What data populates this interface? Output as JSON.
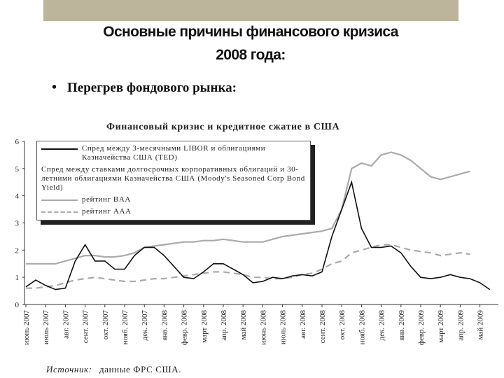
{
  "slide": {
    "title_lines": [
      "Основные причины финансового кризиса",
      "2008 года:"
    ],
    "bullet": "Перегрев фондового рынка:"
  },
  "chart_data": {
    "type": "line",
    "title": "Финансовый кризис и кредитное сжатие в США",
    "categories": [
      "июнь 2007",
      null,
      "июль 2007",
      null,
      "авг. 2007",
      null,
      "сент. 2007",
      null,
      "окт. 2007",
      null,
      "нояб. 2007",
      null,
      "дек. 2007",
      null,
      "янв. 2008",
      null,
      "февр. 2008",
      null,
      "март 2008",
      null,
      "апр. 2008",
      null,
      "май 2008",
      null,
      "июнь 2008",
      null,
      "июль 2008",
      null,
      "авг. 2008",
      null,
      "сент. 2008",
      null,
      "окт. 2008",
      null,
      "нояб. 2008",
      null,
      "дек. 2008",
      null,
      "янв. 2009",
      null,
      "февр. 2009",
      null,
      "март 2009",
      null,
      "апр. 2009",
      null,
      "май 2009",
      null
    ],
    "series": [
      {
        "name": "Спред между 3-месячными LIBOR и облигациями Казначейства США (TED)",
        "color": "#111111",
        "dash": false,
        "values": [
          0.65,
          0.9,
          0.7,
          0.55,
          0.6,
          1.6,
          2.2,
          1.6,
          1.6,
          1.3,
          1.3,
          1.8,
          2.1,
          2.1,
          1.8,
          1.4,
          1.0,
          0.95,
          1.2,
          1.5,
          1.5,
          1.3,
          1.1,
          0.8,
          0.85,
          1.0,
          0.95,
          1.05,
          1.1,
          1.05,
          1.2,
          2.5,
          3.5,
          4.5,
          2.8,
          2.1,
          2.1,
          2.15,
          1.9,
          1.4,
          1.0,
          0.95,
          1.0,
          1.1,
          1.0,
          0.95,
          0.8,
          0.55
        ]
      },
      {
        "name": "рейтинг BAA",
        "color": "#aaaaaa",
        "dash": false,
        "values": [
          1.5,
          1.5,
          1.5,
          1.5,
          1.6,
          1.7,
          1.8,
          1.8,
          1.75,
          1.75,
          1.8,
          1.9,
          2.1,
          2.15,
          2.2,
          2.25,
          2.3,
          2.3,
          2.35,
          2.35,
          2.4,
          2.35,
          2.3,
          2.3,
          2.3,
          2.4,
          2.5,
          2.55,
          2.6,
          2.65,
          2.7,
          2.8,
          3.5,
          5.0,
          5.2,
          5.1,
          5.5,
          5.6,
          5.5,
          5.3,
          5.0,
          4.7,
          4.6,
          4.7,
          4.8,
          4.9,
          null,
          null
        ]
      },
      {
        "name": "рейтинг AAA",
        "color": "#aaaaaa",
        "dash": true,
        "values": [
          0.6,
          0.6,
          0.65,
          0.7,
          0.8,
          0.9,
          0.95,
          1.0,
          0.95,
          0.9,
          0.85,
          0.85,
          0.9,
          0.95,
          0.95,
          1.0,
          1.05,
          1.1,
          1.15,
          1.2,
          1.2,
          1.15,
          1.1,
          1.0,
          1.0,
          0.95,
          0.95,
          1.0,
          1.1,
          1.15,
          1.3,
          1.5,
          1.6,
          1.9,
          2.0,
          2.1,
          2.2,
          2.2,
          2.1,
          2.0,
          1.95,
          1.9,
          1.8,
          1.85,
          1.9,
          1.85,
          null,
          null
        ]
      }
    ],
    "legend_group": "Спред между ставками долгосрочных корпоративных облигаций и 30-летними облигациями Казначейства США (Moody's Seasoned Corp Bond Yield)",
    "ylim": [
      0,
      6
    ],
    "yticks": [
      0,
      1,
      2,
      3,
      4,
      5,
      6
    ],
    "source_label": "Источник:",
    "source_text": "данные ФРС США."
  }
}
